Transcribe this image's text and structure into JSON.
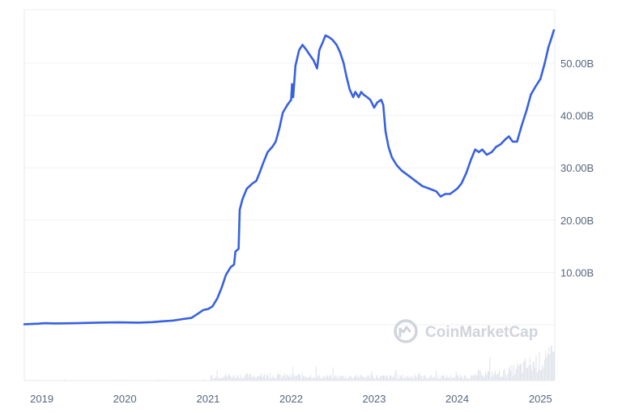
{
  "watermark": "CoinMarketCap",
  "colors": {
    "line": "#3861e0",
    "grid": "#eff1f4",
    "axis_text": "#58667e",
    "volume": "#dfe3ea",
    "watermark": "#d0d4db"
  },
  "chart_data": {
    "type": "line",
    "title": "",
    "xlabel": "",
    "ylabel": "",
    "x_ticks": [
      "2019",
      "2020",
      "2021",
      "2022",
      "2023",
      "2024",
      "2025"
    ],
    "y_ticks": [
      "10.00B",
      "20.00B",
      "30.00B",
      "40.00B",
      "50.00B"
    ],
    "ylim": [
      0,
      58
    ],
    "xlim": [
      "2018-10-16",
      "2025-03-05"
    ],
    "grid": true,
    "series": [
      {
        "unit": "B",
        "points": [
          [
            "2018-10-16",
            0.1
          ],
          [
            "2018-12-15",
            0.2
          ],
          [
            "2019-01-15",
            0.3
          ],
          [
            "2019-03-01",
            0.25
          ],
          [
            "2019-06-01",
            0.3
          ],
          [
            "2019-09-01",
            0.4
          ],
          [
            "2019-12-01",
            0.45
          ],
          [
            "2020-03-01",
            0.4
          ],
          [
            "2020-05-01",
            0.5
          ],
          [
            "2020-06-01",
            0.6
          ],
          [
            "2020-08-01",
            0.8
          ],
          [
            "2020-09-15",
            1.1
          ],
          [
            "2020-10-20",
            1.3
          ],
          [
            "2020-11-20",
            2.2
          ],
          [
            "2020-12-10",
            2.8
          ],
          [
            "2021-01-01",
            3.0
          ],
          [
            "2021-01-20",
            3.5
          ],
          [
            "2021-02-10",
            5.0
          ],
          [
            "2021-03-01",
            7.0
          ],
          [
            "2021-03-20",
            9.5
          ],
          [
            "2021-04-10",
            11.0
          ],
          [
            "2021-04-25",
            11.5
          ],
          [
            "2021-05-01",
            14.0
          ],
          [
            "2021-05-15",
            14.5
          ],
          [
            "2021-05-20",
            22.0
          ],
          [
            "2021-06-01",
            24.0
          ],
          [
            "2021-06-20",
            26.0
          ],
          [
            "2021-07-15",
            27.0
          ],
          [
            "2021-08-01",
            27.5
          ],
          [
            "2021-08-15",
            29.0
          ],
          [
            "2021-09-01",
            31.0
          ],
          [
            "2021-09-20",
            33.0
          ],
          [
            "2021-10-10",
            34.0
          ],
          [
            "2021-10-25",
            35.0
          ],
          [
            "2021-11-10",
            37.5
          ],
          [
            "2021-11-25",
            40.5
          ],
          [
            "2021-12-15",
            42.0
          ],
          [
            "2022-01-01",
            43.0
          ],
          [
            "2022-01-05",
            46.0
          ],
          [
            "2022-01-10",
            43.5
          ],
          [
            "2022-01-20",
            49.5
          ],
          [
            "2022-02-05",
            52.5
          ],
          [
            "2022-02-20",
            53.5
          ],
          [
            "2022-03-10",
            52.5
          ],
          [
            "2022-03-25",
            51.5
          ],
          [
            "2022-04-10",
            50.5
          ],
          [
            "2022-04-25",
            49.0
          ],
          [
            "2022-05-05",
            52.5
          ],
          [
            "2022-05-20",
            54.0
          ],
          [
            "2022-06-01",
            55.3
          ],
          [
            "2022-06-15",
            55.0
          ],
          [
            "2022-07-01",
            54.5
          ],
          [
            "2022-07-20",
            53.5
          ],
          [
            "2022-08-05",
            52.0
          ],
          [
            "2022-08-20",
            50.0
          ],
          [
            "2022-09-01",
            47.5
          ],
          [
            "2022-09-15",
            45.0
          ],
          [
            "2022-10-01",
            43.5
          ],
          [
            "2022-10-10",
            44.5
          ],
          [
            "2022-10-25",
            43.5
          ],
          [
            "2022-11-05",
            44.5
          ],
          [
            "2022-11-15",
            44.0
          ],
          [
            "2022-12-01",
            43.5
          ],
          [
            "2022-12-15",
            43.0
          ],
          [
            "2023-01-01",
            41.5
          ],
          [
            "2023-01-15",
            42.5
          ],
          [
            "2023-02-01",
            43.0
          ],
          [
            "2023-02-10",
            42.0
          ],
          [
            "2023-02-20",
            37.0
          ],
          [
            "2023-03-05",
            34.0
          ],
          [
            "2023-03-20",
            32.0
          ],
          [
            "2023-04-10",
            30.5
          ],
          [
            "2023-05-01",
            29.5
          ],
          [
            "2023-06-01",
            28.5
          ],
          [
            "2023-07-01",
            27.5
          ],
          [
            "2023-08-01",
            26.5
          ],
          [
            "2023-09-01",
            26.0
          ],
          [
            "2023-10-01",
            25.5
          ],
          [
            "2023-10-20",
            24.5
          ],
          [
            "2023-11-10",
            25.0
          ],
          [
            "2023-12-01",
            25.0
          ],
          [
            "2024-01-01",
            26.0
          ],
          [
            "2024-01-20",
            27.0
          ],
          [
            "2024-02-10",
            29.0
          ],
          [
            "2024-03-01",
            31.5
          ],
          [
            "2024-03-20",
            33.5
          ],
          [
            "2024-04-05",
            33.0
          ],
          [
            "2024-04-20",
            33.5
          ],
          [
            "2024-05-10",
            32.5
          ],
          [
            "2024-06-01",
            33.0
          ],
          [
            "2024-06-20",
            34.0
          ],
          [
            "2024-07-10",
            34.5
          ],
          [
            "2024-08-01",
            35.5
          ],
          [
            "2024-08-15",
            36.0
          ],
          [
            "2024-09-01",
            35.0
          ],
          [
            "2024-09-20",
            35.0
          ],
          [
            "2024-10-10",
            38.0
          ],
          [
            "2024-11-01",
            41.0
          ],
          [
            "2024-11-20",
            44.0
          ],
          [
            "2024-12-10",
            45.5
          ],
          [
            "2025-01-01",
            47.0
          ],
          [
            "2025-01-20",
            50.0
          ],
          [
            "2025-02-05",
            53.0
          ],
          [
            "2025-02-20",
            55.0
          ],
          [
            "2025-03-01",
            56.3
          ]
        ]
      }
    ]
  }
}
